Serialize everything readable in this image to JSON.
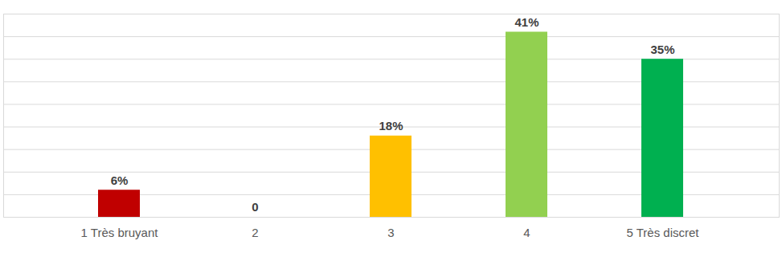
{
  "chart_data": {
    "type": "bar",
    "categories": [
      "1 Très bruyant",
      "2",
      "3",
      "4",
      "5 Très discret"
    ],
    "values": [
      6,
      0,
      18,
      41,
      35
    ],
    "value_labels": [
      "6%",
      "0",
      "18%",
      "41%",
      "35%"
    ],
    "colors": [
      "#c00000",
      "#ed7d31",
      "#ffc000",
      "#92d050",
      "#00b050"
    ],
    "ylim": [
      0,
      45
    ],
    "yticks": [
      0,
      5,
      10,
      15,
      20,
      25,
      30,
      35,
      40,
      45
    ],
    "grid": true,
    "data_labels": true,
    "tick_labels": "x"
  }
}
